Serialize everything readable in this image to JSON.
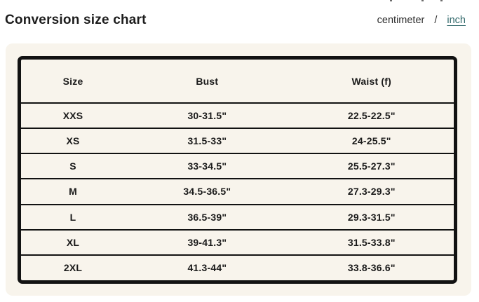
{
  "page": {
    "title": "Conversion size chart"
  },
  "unit_toggle": {
    "centimeter_label": "centimeter",
    "separator": "/",
    "inch_label": "inch",
    "selected_unit": "inch"
  },
  "colors": {
    "accent_link_teal": "#336a6c",
    "panel_background": "#f8f4ec",
    "table_border_black": "#121212",
    "text_dark": "#1a1a1a"
  },
  "size_chart": {
    "columns": [
      "Size",
      "Bust",
      "Waist (f)"
    ],
    "rows": [
      [
        "XXS",
        "30-31.5\"",
        "22.5-22.5\""
      ],
      [
        "XS",
        "31.5-33\"",
        "24-25.5\""
      ],
      [
        "S",
        "33-34.5\"",
        "25.5-27.3\""
      ],
      [
        "M",
        "34.5-36.5\"",
        "27.3-29.3\""
      ],
      [
        "L",
        "36.5-39\"",
        "29.3-31.5\""
      ],
      [
        "XL",
        "39-41.3\"",
        "31.5-33.8\""
      ],
      [
        "2XL",
        "41.3-44\"",
        "33.8-36.6\""
      ]
    ]
  }
}
